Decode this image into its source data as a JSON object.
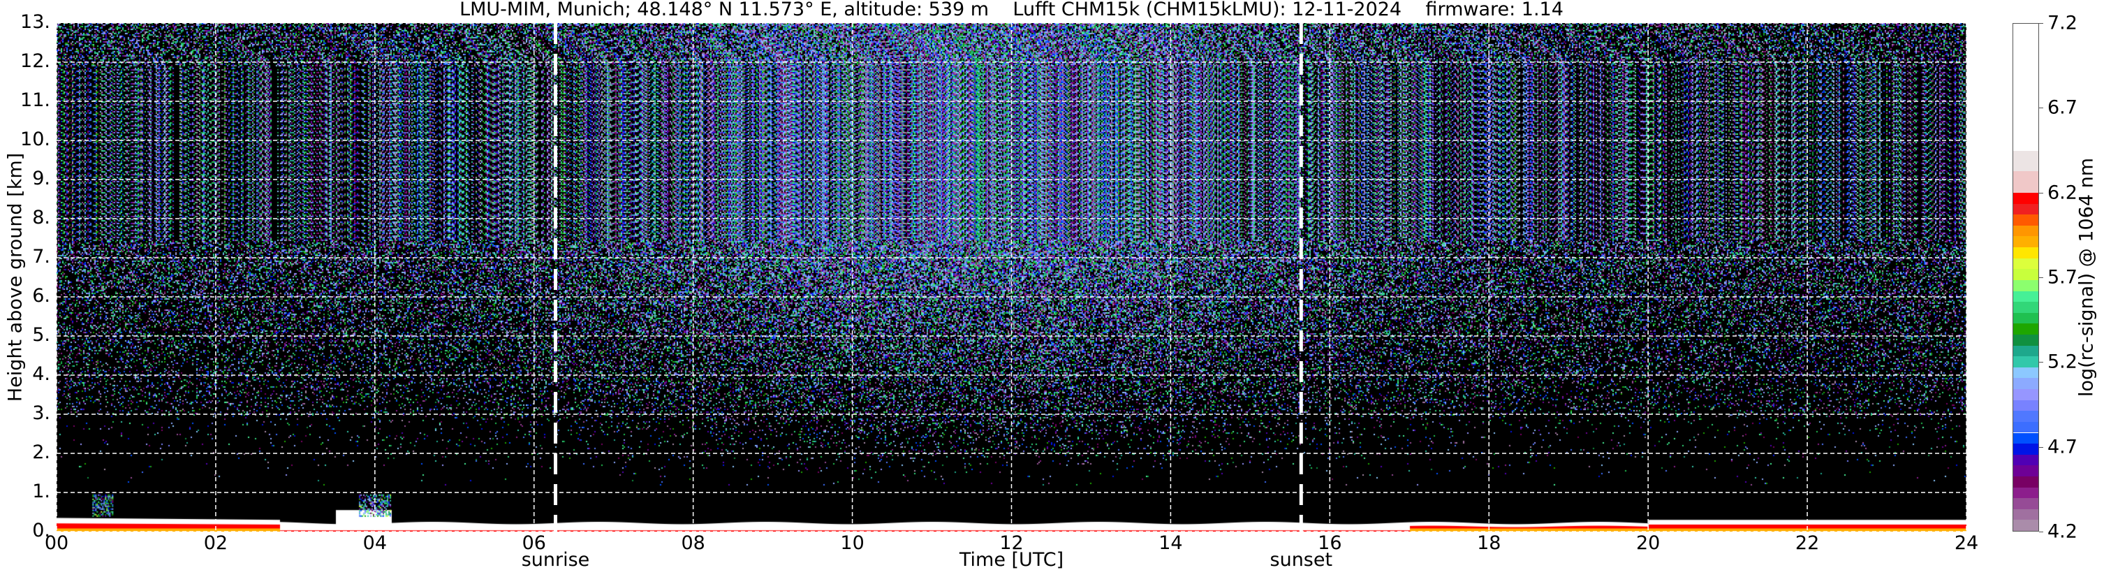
{
  "chart_data": {
    "type": "heatmap",
    "title": "LMU-MIM, Munich; 48.148° N 11.573° E, altitude: 539 m    Lufft CHM15k (CHM15kLMU): 12-11-2024    firmware: 1.14",
    "xlabel": "Time [UTC]",
    "ylabel": "Height above ground [km]",
    "xlim": [
      0,
      24
    ],
    "ylim": [
      0,
      13
    ],
    "xticks": [
      "00",
      "02",
      "04",
      "06",
      "08",
      "10",
      "12",
      "14",
      "16",
      "18",
      "20",
      "22",
      "24"
    ],
    "yticks": [
      "0.",
      "1.",
      "2.",
      "3.",
      "4.",
      "5.",
      "6.",
      "7.",
      "8.",
      "9.",
      "10.",
      "11.",
      "12.",
      "13."
    ],
    "grid": true,
    "background": "#000000",
    "annotations": [
      {
        "label": "sunrise",
        "x": 6.27
      },
      {
        "label": "sunset",
        "x": 15.64
      }
    ],
    "colorbar": {
      "label": "log(rc-signal) @ 1064 nm",
      "range": [
        4.2,
        7.2
      ],
      "ticks": [
        "4.2",
        "4.7",
        "5.2",
        "5.7",
        "6.2",
        "6.7",
        "7.2"
      ],
      "colors": [
        "#aa8caa",
        "#a070a0",
        "#964b96",
        "#8c1e8c",
        "#780064",
        "#6e0096",
        "#5000b4",
        "#0014e6",
        "#0050ff",
        "#3c6eff",
        "#5078ff",
        "#7882ff",
        "#9696ff",
        "#8caaff",
        "#8cc8ff",
        "#32c8aa",
        "#1ea88c",
        "#109040",
        "#1ea600",
        "#20c050",
        "#32d778",
        "#46f096",
        "#8cff6e",
        "#c8ff3c",
        "#dcff3c",
        "#ffe600",
        "#ffaf00",
        "#ff9600",
        "#ff5a00",
        "#f02020",
        "#ff0000",
        "#f0c8c8",
        "#ece4e4",
        "#ffffff"
      ]
    }
  }
}
